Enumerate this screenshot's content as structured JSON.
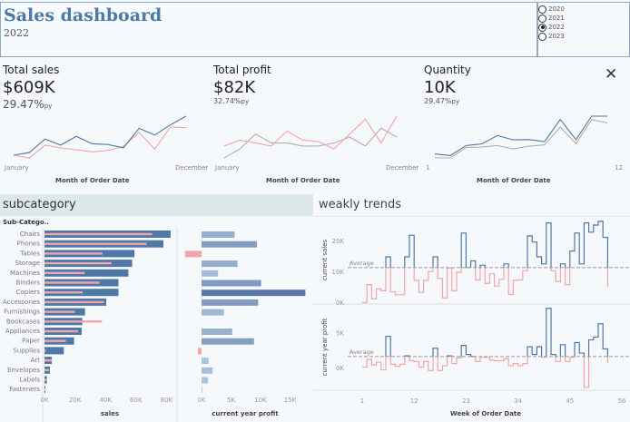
{
  "header": {
    "title": "Sales dashboard",
    "subtitle": "2022"
  },
  "year_filter": {
    "options": [
      "2020",
      "2021",
      "2022",
      "2023"
    ],
    "selected": "2022"
  },
  "close_icon": "close-icon",
  "colors": {
    "current": "#4e79a7",
    "previous_pink": "#f4a3a8",
    "previous_gray": "#b0b0b0",
    "header_bg": "#dde9e6"
  },
  "kpis": [
    {
      "title": "Total sales",
      "value": "$609K",
      "pct": "29.47%",
      "pct_suffix": "py",
      "x_start": "January",
      "x_end": "December",
      "x_title": "Month of Order Date"
    },
    {
      "title": "Total profit",
      "value": "$82K",
      "pct": "32.74%",
      "pct_suffix": "py",
      "x_start": "January",
      "x_end": "December",
      "x_title": "Month of Order Date"
    },
    {
      "title": "Quantity",
      "value": "10K",
      "pct": "29.47%",
      "pct_suffix": "py",
      "x_start": "1",
      "x_end": "12",
      "x_title": "Month of Order Date"
    }
  ],
  "subcategory": {
    "title": "subcategory",
    "column_header": "Sub-Catego.."
  },
  "weekly": {
    "title": "weakly trends"
  },
  "chart_data": [
    {
      "type": "line",
      "x": [
        1,
        2,
        3,
        4,
        5,
        6,
        7,
        8,
        9,
        10,
        11,
        12
      ],
      "series": [
        {
          "values": [
            26,
            30,
            50,
            41,
            54,
            43,
            42,
            37,
            66,
            56,
            71,
            84
          ],
          "color": "#4e79a7"
        },
        {
          "values": [
            26,
            22,
            41,
            37,
            34,
            31,
            33,
            39,
            60,
            35,
            68,
            67
          ],
          "color": "#f4a3a8"
        }
      ]
    },
    {
      "type": "line",
      "x": [
        1,
        2,
        3,
        4,
        5,
        6,
        7,
        8,
        9,
        10,
        11,
        12
      ],
      "series": [
        {
          "values": [
            5,
            7,
            6,
            5,
            10,
            7,
            6.5,
            4,
            9,
            14,
            6,
            15
          ],
          "color": "#f4a3a8"
        },
        {
          "values": [
            1,
            4,
            9,
            6,
            6,
            5,
            5,
            6,
            8,
            5,
            11,
            8
          ],
          "color": "#b0b0b0"
        }
      ]
    },
    {
      "type": "line",
      "x": [
        1,
        2,
        3,
        4,
        5,
        6,
        7,
        8,
        9,
        10,
        11,
        12
      ],
      "series": [
        {
          "values": [
            550,
            500,
            800,
            850,
            1100,
            970,
            980,
            920,
            1580,
            980,
            1680,
            1680
          ],
          "color": "#4e79a7"
        },
        {
          "values": [
            430,
            430,
            740,
            760,
            800,
            700,
            780,
            820,
            1350,
            860,
            1580,
            1480
          ],
          "color": "#b0b0b0"
        }
      ]
    },
    {
      "type": "bar",
      "orientation": "horizontal",
      "categories": [
        "Chairs",
        "Phones",
        "Tables",
        "Storage",
        "Machines",
        "Binders",
        "Copiers",
        "Accessories",
        "Furnishings",
        "Bookcases",
        "Appliances",
        "Paper",
        "Supplies",
        "Art",
        "Envelopes",
        "Labels",
        "Fasteners"
      ],
      "xlabel": "sales",
      "xticks": [
        "0K",
        "20K",
        "40K",
        "60K",
        "80K"
      ],
      "xlim": [
        0,
        85000
      ],
      "series": [
        {
          "values": [
            82700,
            78000,
            59000,
            57500,
            55000,
            48500,
            48500,
            40500,
            26600,
            24800,
            24400,
            19400,
            12700,
            4800,
            3600,
            1600,
            600
          ],
          "color": "#4e79a7"
        },
        {
          "values": [
            70600,
            67000,
            38000,
            44000,
            26400,
            36000,
            25000,
            39000,
            20000,
            37700,
            22000,
            14000,
            800,
            4800,
            3200,
            1800,
            400
          ],
          "color": "#f4a3a8"
        }
      ]
    },
    {
      "type": "bar",
      "orientation": "horizontal",
      "xlabel": "current year profit",
      "xticks": [
        "0K",
        "5K",
        "10K",
        "15K"
      ],
      "xlim": [
        -4000,
        18000
      ],
      "values": [
        5600,
        9400,
        -2800,
        6100,
        2800,
        10100,
        17600,
        9600,
        3800,
        null,
        5200,
        8900,
        -600,
        1200,
        1900,
        1100,
        100
      ]
    },
    {
      "type": "line",
      "step": true,
      "xlabel": "Week of Order Date",
      "ylabel": "current sales",
      "xticks": [
        "1",
        "12",
        "23",
        "34",
        "45",
        "56"
      ],
      "yticks": [
        "0K",
        "10K",
        "20K"
      ],
      "ylim": [
        0,
        28000
      ],
      "average_label": "Average",
      "average": 11500,
      "values": [
        200,
        6000,
        1400,
        4600,
        4000,
        15000,
        3700,
        2700,
        2700,
        15000,
        22000,
        7400,
        3500,
        7400,
        10200,
        15000,
        8000,
        1700,
        11300,
        4000,
        10000,
        22700,
        11500,
        13700,
        7500,
        12300,
        6400,
        9500,
        5500,
        7700,
        12700,
        2800,
        7400,
        7500,
        10500,
        21800,
        19800,
        15000,
        12700,
        26000,
        10500,
        7000,
        12700,
        6000,
        16900,
        22700,
        12700,
        26000,
        23000,
        25300,
        26500,
        21300,
        5300
      ]
    },
    {
      "type": "line",
      "step": true,
      "xlabel": "Week of Order Date",
      "ylabel": "current year profit",
      "xticks": [
        "1",
        "12",
        "23",
        "34",
        "45",
        "56"
      ],
      "yticks": [
        "0K",
        "5K"
      ],
      "ylim": [
        -4000,
        9000
      ],
      "average_label": "Average",
      "average": 1700,
      "values": [
        200,
        1300,
        500,
        900,
        -200,
        4600,
        600,
        300,
        600,
        1800,
        1100,
        1000,
        200,
        1000,
        -300,
        2900,
        -300,
        400,
        1800,
        700,
        1500,
        3300,
        2000,
        1700,
        1000,
        1600,
        1600,
        1200,
        1100,
        1100,
        1400,
        400,
        700,
        400,
        700,
        3100,
        2000,
        3100,
        1600,
        8600,
        2000,
        1000,
        3400,
        1000,
        1600,
        3700,
        2200,
        -2700,
        4100,
        4500,
        6400,
        2800,
        800
      ]
    }
  ]
}
